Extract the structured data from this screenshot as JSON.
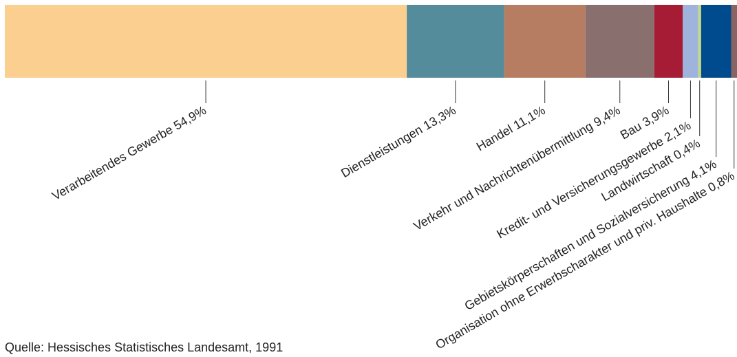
{
  "chart_data": {
    "type": "stacked-bar",
    "categories": [
      "Verarbeitendes Gewerbe",
      "Dienstleistungen",
      "Handel",
      "Verkehr und Nachrichtenübermittlung",
      "Bau",
      "Kredit- und Versicherungsgewerbe",
      "Landwirtschaft",
      "Gebietskörperschaften und Sozialversicherung",
      "Organisation ohne Erwerbscharakter und priv. Haushalte"
    ],
    "values": [
      54.9,
      13.3,
      11.1,
      9.4,
      3.9,
      2.1,
      0.4,
      4.1,
      0.8
    ],
    "value_labels": [
      "54,9%",
      "13,3%",
      "11,1%",
      "9,4%",
      "3,9%",
      "2,1%",
      "0,4%",
      "4,1%",
      "0,8%"
    ],
    "colors": [
      "#fbcf8f",
      "#548c9c",
      "#b77d62",
      "#8a6f6f",
      "#a61c34",
      "#9fb4dd",
      "#c4d985",
      "#004b8d",
      "#8a6363"
    ],
    "xlim": [
      0,
      100
    ],
    "source": "Quelle: Hessisches Statistisches Landesamt, 1991"
  }
}
